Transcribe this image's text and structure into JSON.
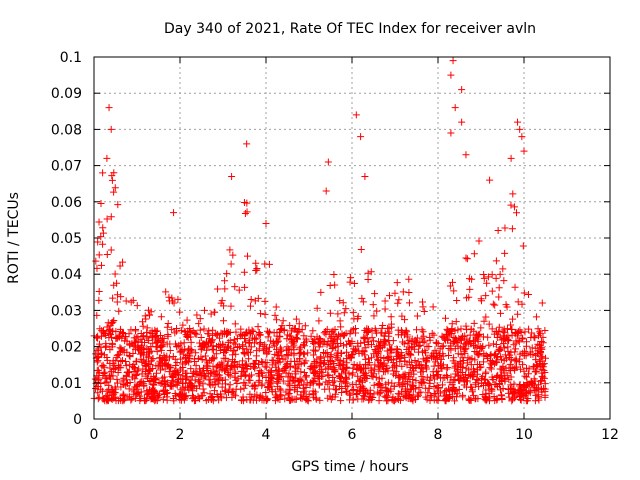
{
  "chart_data": {
    "type": "scatter",
    "title": "Day 340 of 2021, Rate Of TEC Index for receiver avln",
    "xlabel": "GPS time / hours",
    "ylabel": "ROTI / TECUs",
    "xlim": [
      0,
      12
    ],
    "ylim": [
      0,
      0.1
    ],
    "x_ticks": [
      0,
      2,
      4,
      6,
      8,
      10,
      12
    ],
    "x_tick_labels": [
      "0",
      "2",
      "4",
      "6",
      "8",
      "10",
      "12"
    ],
    "y_ticks": [
      0,
      0.01,
      0.02,
      0.03,
      0.04,
      0.05,
      0.06,
      0.07,
      0.08,
      0.09,
      0.1
    ],
    "y_tick_labels": [
      "0",
      "0.01",
      "0.02",
      "0.03",
      "0.04",
      "0.05",
      "0.06",
      "0.07",
      "0.08",
      "0.09",
      "0.1"
    ],
    "grid": true,
    "marker": "plus",
    "series_color": "#ff0000",
    "x_range_of_data": [
      0,
      10.5
    ],
    "baseline_band": [
      0.005,
      0.025
    ],
    "peaks": [
      {
        "x": 0.35,
        "y": 0.086
      },
      {
        "x": 0.4,
        "y": 0.08
      },
      {
        "x": 0.3,
        "y": 0.072
      },
      {
        "x": 0.2,
        "y": 0.068
      },
      {
        "x": 1.85,
        "y": 0.057
      },
      {
        "x": 3.2,
        "y": 0.067
      },
      {
        "x": 3.55,
        "y": 0.076
      },
      {
        "x": 4.0,
        "y": 0.054
      },
      {
        "x": 5.45,
        "y": 0.071
      },
      {
        "x": 5.4,
        "y": 0.063
      },
      {
        "x": 6.1,
        "y": 0.084
      },
      {
        "x": 6.2,
        "y": 0.078
      },
      {
        "x": 6.3,
        "y": 0.067
      },
      {
        "x": 8.35,
        "y": 0.099
      },
      {
        "x": 8.3,
        "y": 0.095
      },
      {
        "x": 8.55,
        "y": 0.091
      },
      {
        "x": 8.4,
        "y": 0.086
      },
      {
        "x": 8.55,
        "y": 0.082
      },
      {
        "x": 8.3,
        "y": 0.079
      },
      {
        "x": 8.65,
        "y": 0.073
      },
      {
        "x": 9.85,
        "y": 0.082
      },
      {
        "x": 9.9,
        "y": 0.08
      },
      {
        "x": 9.95,
        "y": 0.078
      },
      {
        "x": 9.2,
        "y": 0.066
      },
      {
        "x": 9.7,
        "y": 0.072
      },
      {
        "x": 10.0,
        "y": 0.074
      }
    ]
  }
}
